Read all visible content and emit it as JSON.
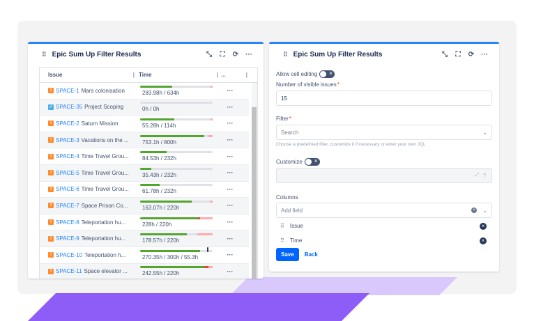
{
  "colors": {
    "accent": "#2684ff",
    "done": "#52a62e",
    "over": "#e5493a",
    "remaining": "#ffabab",
    "track": "#dfe1e6",
    "purple": "#8e5cf7"
  },
  "left": {
    "title": "Epic Sum Up Filter Results",
    "icons": [
      "collapse-icon",
      "fullscreen-icon",
      "refresh-icon",
      "more-icon"
    ],
    "headers": {
      "issue": "Issue",
      "time": "Time",
      "more": "..."
    },
    "rows": [
      {
        "type": "epic",
        "key": "SPACE-1",
        "summary": "Mars colonisation",
        "time": "283.98h / 634h",
        "done": 0.44,
        "over": 0,
        "remaining": 0.03
      },
      {
        "type": "task",
        "key": "SPACE-35",
        "summary": "Project Scoping",
        "time": "0h / 0h",
        "done": 0,
        "over": 0,
        "remaining": 0
      },
      {
        "type": "epic",
        "key": "SPACE-2",
        "summary": "Saturn Mission",
        "time": "55.28h / 114h",
        "done": 0.47,
        "over": 0,
        "remaining": 0.03
      },
      {
        "type": "epic",
        "key": "SPACE-3",
        "summary": "Vacations on the ...",
        "time": "753.1h / 800h",
        "done": 0.88,
        "over": 0,
        "remaining": 0.06
      },
      {
        "type": "epic",
        "key": "SPACE-4",
        "summary": "Time Travel Grou...",
        "time": "84.53h / 232h",
        "done": 0.37,
        "over": 0,
        "remaining": 0
      },
      {
        "type": "epic",
        "key": "SPACE-5",
        "summary": "Time Travel Grou...",
        "time": "35.43h / 232h",
        "done": 0.15,
        "over": 0,
        "remaining": 0
      },
      {
        "type": "epic",
        "key": "SPACE-6",
        "summary": "Time Travel Grou...",
        "time": "61.78h / 232h",
        "done": 0.27,
        "over": 0,
        "remaining": 0
      },
      {
        "type": "epic",
        "key": "SPACE-7",
        "summary": "Space Prison Co...",
        "time": "163.07h / 220h",
        "done": 0.71,
        "over": 0,
        "remaining": 0.04
      },
      {
        "type": "epic",
        "key": "SPACE-8",
        "summary": "Teleportation hu...",
        "time": "228h / 220h",
        "done": 0.8,
        "over": 0.03,
        "remaining": 0.17
      },
      {
        "type": "epic",
        "key": "SPACE-9",
        "summary": "Teleportation hu...",
        "time": "178.57h / 220h",
        "done": 0.64,
        "over": 0,
        "remaining": 0.21
      },
      {
        "type": "epic",
        "key": "SPACE-10",
        "summary": "Teleportation h...",
        "time": "270.35h / 300h / 55.3h",
        "done": 0.83,
        "over": 0,
        "remaining": 0,
        "marker": 0.92
      },
      {
        "type": "epic",
        "key": "SPACE-11",
        "summary": "Space elevator ...",
        "time": "242.55h / 220h",
        "done": 0.88,
        "over": 0.06,
        "remaining": 0.06
      }
    ]
  },
  "right": {
    "title": "Epic Sum Up Filter Results",
    "icons": [
      "collapse-icon",
      "fullscreen-icon",
      "refresh-icon",
      "more-icon"
    ],
    "allow_cell_editing": "Allow cell editing",
    "allow_cell_editing_on": false,
    "visible_issues_label": "Number of visible issues",
    "visible_issues_value": "15",
    "filter_label": "Filter",
    "filter_placeholder": "Search",
    "filter_hint": "Choose a predefined filter, customize it if necessary or enter your own JQL",
    "customize_label": "Customize",
    "customize_on": false,
    "columns_label": "Columns",
    "add_field_placeholder": "Add field",
    "columns": [
      "Issue",
      "Time"
    ],
    "save": "Save",
    "back": "Back"
  }
}
